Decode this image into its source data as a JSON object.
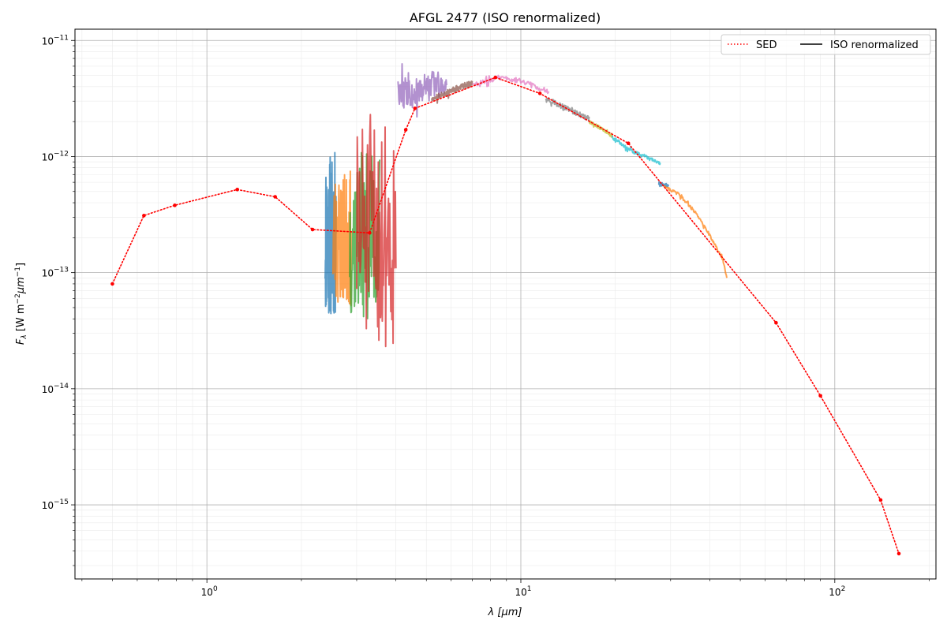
{
  "chart_data": {
    "type": "line",
    "title": "AFGL 2477 (ISO renormalized)",
    "xlabel": "λ [μm]",
    "ylabel_main": "F",
    "ylabel_sub": "λ",
    "ylabel_unit_open": " [W m",
    "ylabel_unit_exp1": "−2",
    "ylabel_unit_mid": "μm",
    "ylabel_unit_exp2": "−1",
    "ylabel_unit_close": "]",
    "x_scale": "log",
    "y_scale": "log",
    "xlim": [
      0.38,
      210
    ],
    "ylim": [
      2.3e-16,
      1.25e-11
    ],
    "grid": true,
    "legend": {
      "placement": "top-right",
      "entries": [
        {
          "name": "SED",
          "style": "dotted",
          "color": "#ff0000"
        },
        {
          "name": "ISO renormalized",
          "style": "solid",
          "color": "#000000"
        }
      ]
    },
    "x_ticks": [
      {
        "value": 1,
        "base": "10",
        "exp": "0"
      },
      {
        "value": 10,
        "base": "10",
        "exp": "1"
      },
      {
        "value": 100,
        "base": "10",
        "exp": "2"
      }
    ],
    "y_ticks": [
      {
        "value": 1e-11,
        "base": "10",
        "exp": "−11"
      },
      {
        "value": 1e-12,
        "base": "10",
        "exp": "−12"
      },
      {
        "value": 1e-13,
        "base": "10",
        "exp": "−13"
      },
      {
        "value": 1e-14,
        "base": "10",
        "exp": "−14"
      },
      {
        "value": 1e-15,
        "base": "10",
        "exp": "−15"
      }
    ],
    "sed": {
      "name": "SED",
      "color": "#ff0000",
      "x": [
        0.5,
        0.63,
        0.79,
        1.25,
        1.65,
        2.17,
        3.3,
        4.3,
        4.6,
        8.3,
        11.5,
        22,
        65,
        90,
        140,
        160
      ],
      "y": [
        8e-14,
        3.1e-13,
        3.8e-13,
        5.2e-13,
        4.5e-13,
        2.35e-13,
        2.2e-13,
        1.7e-12,
        2.6e-12,
        4.8e-12,
        3.5e-12,
        1.3e-12,
        3.7e-14,
        8.7e-15,
        1.1e-15,
        3.8e-16
      ]
    },
    "iso_segments": [
      {
        "color": "#1f77b4",
        "xmin": 2.38,
        "xmax": 2.58,
        "ylo": 4e-14,
        "yhi": 1.1e-12,
        "mode": "noisy",
        "seed": 11
      },
      {
        "color": "#ff7f0e",
        "xmin": 2.52,
        "xmax": 2.88,
        "ylo": 5e-14,
        "yhi": 7.5e-13,
        "mode": "noisy",
        "seed": 23
      },
      {
        "color": "#2ca02c",
        "xmin": 2.85,
        "xmax": 3.55,
        "ylo": 4e-14,
        "yhi": 1.1e-12,
        "mode": "noisy",
        "seed": 37
      },
      {
        "color": "#d62728",
        "xmin": 3.0,
        "xmax": 4.0,
        "ylo": 2.2e-14,
        "yhi": 2.3e-12,
        "mode": "noisy",
        "seed": 51
      },
      {
        "color": "#9467bd",
        "xmin": 4.05,
        "xmax": 5.8,
        "ylo": 2.2e-12,
        "yhi": 7e-12,
        "mode": "band",
        "x": [
          4.05,
          4.5,
          5.0,
          5.5,
          5.8
        ],
        "y": [
          3.3e-12,
          3.6e-12,
          3.9e-12,
          4.3e-12,
          4.2e-12
        ],
        "amp": 0.28,
        "seed": 63
      },
      {
        "color": "#8c564b",
        "xmin": 5.2,
        "xmax": 7.0,
        "ylo": 2.8e-12,
        "yhi": 4.8e-12,
        "mode": "band",
        "x": [
          5.2,
          6.0,
          7.0
        ],
        "y": [
          3.1e-12,
          3.7e-12,
          4.3e-12
        ],
        "amp": 0.06,
        "seed": 71
      },
      {
        "color": "#e377c2",
        "xmin": 7.0,
        "xmax": 12.3,
        "ylo": 3.5e-12,
        "yhi": 5.4e-12,
        "mode": "band",
        "x": [
          7.0,
          8.5,
          10.0,
          12.3
        ],
        "y": [
          4.1e-12,
          4.8e-12,
          4.5e-12,
          3.6e-12
        ],
        "amp": 0.05,
        "seed": 83
      },
      {
        "color": "#7f7f7f",
        "xmin": 12.0,
        "xmax": 16.5,
        "ylo": 1.8e-12,
        "yhi": 3.5e-12,
        "mode": "band",
        "x": [
          12.0,
          14.0,
          16.5
        ],
        "y": [
          3.2e-12,
          2.6e-12,
          2.1e-12
        ],
        "amp": 0.05,
        "seed": 97
      },
      {
        "color": "#bcbd22",
        "xmin": 16.5,
        "xmax": 19.5,
        "ylo": 1.4e-12,
        "yhi": 2.1e-12,
        "mode": "band",
        "x": [
          16.5,
          18.0,
          19.5
        ],
        "y": [
          2e-12,
          1.75e-12,
          1.5e-12
        ],
        "amp": 0.03,
        "seed": 101
      },
      {
        "color": "#17becf",
        "xmin": 19.5,
        "xmax": 27.8,
        "ylo": 8.5e-13,
        "yhi": 1.5e-12,
        "mode": "band",
        "x": [
          19.5,
          22.0,
          25.0,
          27.8
        ],
        "y": [
          1.5e-12,
          1.15e-12,
          1e-12,
          8.7e-13
        ],
        "amp": 0.03,
        "seed": 113
      },
      {
        "color": "#1f77b4",
        "xmin": 27.5,
        "xmax": 29.5,
        "ylo": 5.5e-13,
        "yhi": 6.1e-13,
        "mode": "band",
        "x": [
          27.5,
          29.5
        ],
        "y": [
          5.8e-13,
          5.6e-13
        ],
        "amp": 0.02,
        "seed": 127
      },
      {
        "color": "#ff7f0e",
        "xmin": 28.5,
        "xmax": 45.3,
        "ylo": 5.8e-14,
        "yhi": 6e-13,
        "mode": "band",
        "x": [
          28.5,
          32.0,
          36.0,
          40.0,
          44.0,
          45.3
        ],
        "y": [
          5.6e-13,
          4.7e-13,
          3.3e-13,
          2.1e-13,
          1.3e-13,
          9e-14
        ],
        "amp": 0.03,
        "seed": 131
      }
    ]
  }
}
